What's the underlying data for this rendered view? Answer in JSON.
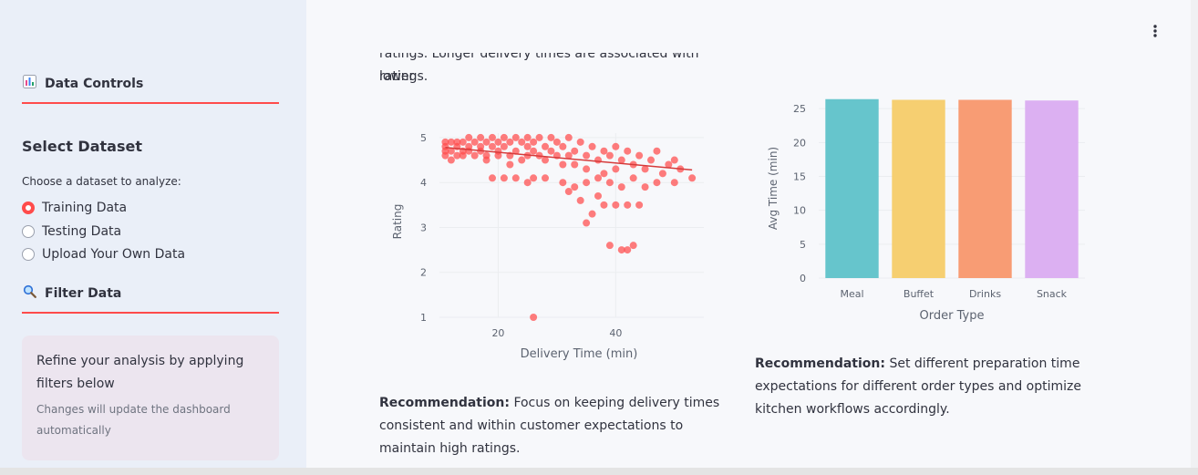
{
  "sidebar": {
    "data_controls": {
      "icon": "bar-chart-icon",
      "label": "Data Controls"
    },
    "select_dataset": {
      "title": "Select Dataset",
      "prompt": "Choose a dataset to analyze:",
      "options": [
        {
          "label": "Training Data",
          "selected": true
        },
        {
          "label": "Testing Data",
          "selected": false
        },
        {
          "label": "Upload Your Own Data",
          "selected": false
        }
      ]
    },
    "filter_data": {
      "icon": "magnifier-icon",
      "label": "Filter Data"
    },
    "info": {
      "main": "Refine your analysis by applying filters below",
      "sub": "Changes will update the dashboard automatically"
    }
  },
  "main": {
    "menu_icon": "vertical-dots-icon",
    "intro_tail_line1": "ratings. Longer delivery times are associated with lower",
    "intro_tail_line2": "ratings.",
    "rec1_label": "Recommendation:",
    "rec1_text": "Focus on keeping delivery times consistent and within customer expectations to maintain high ratings.",
    "rec2_label": "Recommendation:",
    "rec2_text": "Set different preparation time expectations for different order types and optimize kitchen workflows accordingly."
  },
  "colors": {
    "accent": "#ff4b4b",
    "scatter_point": "#ff4b4b",
    "bar_meal": "#66c5cc",
    "bar_buffet": "#f6cf71",
    "bar_drinks": "#f89c74",
    "bar_snack": "#dcb0f2"
  },
  "chart_data": [
    {
      "type": "scatter",
      "xlabel": "Delivery Time (min)",
      "ylabel": "Rating",
      "xticks": [
        20,
        40
      ],
      "yticks": [
        1,
        2,
        3,
        4,
        5
      ],
      "xlim": [
        10,
        55
      ],
      "ylim": [
        1,
        5.1
      ],
      "trendline": {
        "x": [
          11,
          53
        ],
        "y": [
          4.78,
          4.28
        ]
      },
      "points": [
        [
          11,
          4.9
        ],
        [
          11,
          4.8
        ],
        [
          11,
          4.7
        ],
        [
          11,
          4.6
        ],
        [
          12,
          4.9
        ],
        [
          12,
          4.7
        ],
        [
          12,
          4.5
        ],
        [
          13,
          4.9
        ],
        [
          13,
          4.8
        ],
        [
          13,
          4.6
        ],
        [
          14,
          4.9
        ],
        [
          14,
          4.7
        ],
        [
          14,
          4.6
        ],
        [
          15,
          5
        ],
        [
          15,
          4.8
        ],
        [
          15,
          4.7
        ],
        [
          16,
          4.9
        ],
        [
          16,
          4.6
        ],
        [
          17,
          5
        ],
        [
          17,
          4.8
        ],
        [
          17,
          4.7
        ],
        [
          18,
          4.9
        ],
        [
          18,
          4.6
        ],
        [
          18,
          4.5
        ],
        [
          19,
          5
        ],
        [
          19,
          4.8
        ],
        [
          20,
          4.9
        ],
        [
          20,
          4.7
        ],
        [
          20,
          4.6
        ],
        [
          21,
          5
        ],
        [
          21,
          4.8
        ],
        [
          22,
          4.9
        ],
        [
          22,
          4.6
        ],
        [
          22,
          4.4
        ],
        [
          23,
          5
        ],
        [
          23,
          4.7
        ],
        [
          24,
          4.9
        ],
        [
          24,
          4.5
        ],
        [
          25,
          5
        ],
        [
          25,
          4.8
        ],
        [
          25,
          4.6
        ],
        [
          26,
          4.9
        ],
        [
          26,
          4.7
        ],
        [
          27,
          5
        ],
        [
          27,
          4.6
        ],
        [
          28,
          4.8
        ],
        [
          28,
          4.5
        ],
        [
          29,
          5
        ],
        [
          29,
          4.7
        ],
        [
          30,
          4.9
        ],
        [
          30,
          4.6
        ],
        [
          31,
          4.8
        ],
        [
          31,
          4.4
        ],
        [
          32,
          5
        ],
        [
          32,
          4.6
        ],
        [
          33,
          4.7
        ],
        [
          33,
          4.4
        ],
        [
          34,
          4.9
        ],
        [
          35,
          4.6
        ],
        [
          35,
          4.3
        ],
        [
          36,
          4.8
        ],
        [
          37,
          4.5
        ],
        [
          38,
          4.7
        ],
        [
          38,
          4.2
        ],
        [
          39,
          4.6
        ],
        [
          40,
          4.8
        ],
        [
          40,
          4.3
        ],
        [
          41,
          4.5
        ],
        [
          42,
          4.7
        ],
        [
          43,
          4.4
        ],
        [
          44,
          4.6
        ],
        [
          45,
          4.3
        ],
        [
          46,
          4.5
        ],
        [
          47,
          4.7
        ],
        [
          48,
          4.2
        ],
        [
          49,
          4.4
        ],
        [
          50,
          4.5
        ],
        [
          51,
          4.3
        ],
        [
          53,
          4.1
        ],
        [
          19,
          4.1
        ],
        [
          21,
          4.1
        ],
        [
          23,
          4.1
        ],
        [
          25,
          4.0
        ],
        [
          26,
          4.1
        ],
        [
          28,
          4.1
        ],
        [
          31,
          4.0
        ],
        [
          33,
          3.9
        ],
        [
          35,
          4.0
        ],
        [
          37,
          4.1
        ],
        [
          39,
          4.0
        ],
        [
          43,
          4.1
        ],
        [
          47,
          4.0
        ],
        [
          50,
          4.0
        ],
        [
          32,
          3.8
        ],
        [
          34,
          3.6
        ],
        [
          37,
          3.7
        ],
        [
          41,
          3.9
        ],
        [
          45,
          3.9
        ],
        [
          36,
          3.3
        ],
        [
          38,
          3.5
        ],
        [
          40,
          3.5
        ],
        [
          42,
          3.5
        ],
        [
          44,
          3.5
        ],
        [
          35,
          3.1
        ],
        [
          39,
          2.6
        ],
        [
          41,
          2.5
        ],
        [
          42,
          2.5
        ],
        [
          43,
          2.6
        ],
        [
          26,
          1.0
        ]
      ]
    },
    {
      "type": "bar",
      "categories": [
        "Meal",
        "Buffet",
        "Drinks",
        "Snack"
      ],
      "values": [
        26.4,
        26.3,
        26.3,
        26.2
      ],
      "xlabel": "Order Type",
      "ylabel": "Avg Time (min)",
      "yticks": [
        0,
        5,
        10,
        15,
        20,
        25
      ],
      "ylim": [
        0,
        26.5
      ]
    }
  ]
}
